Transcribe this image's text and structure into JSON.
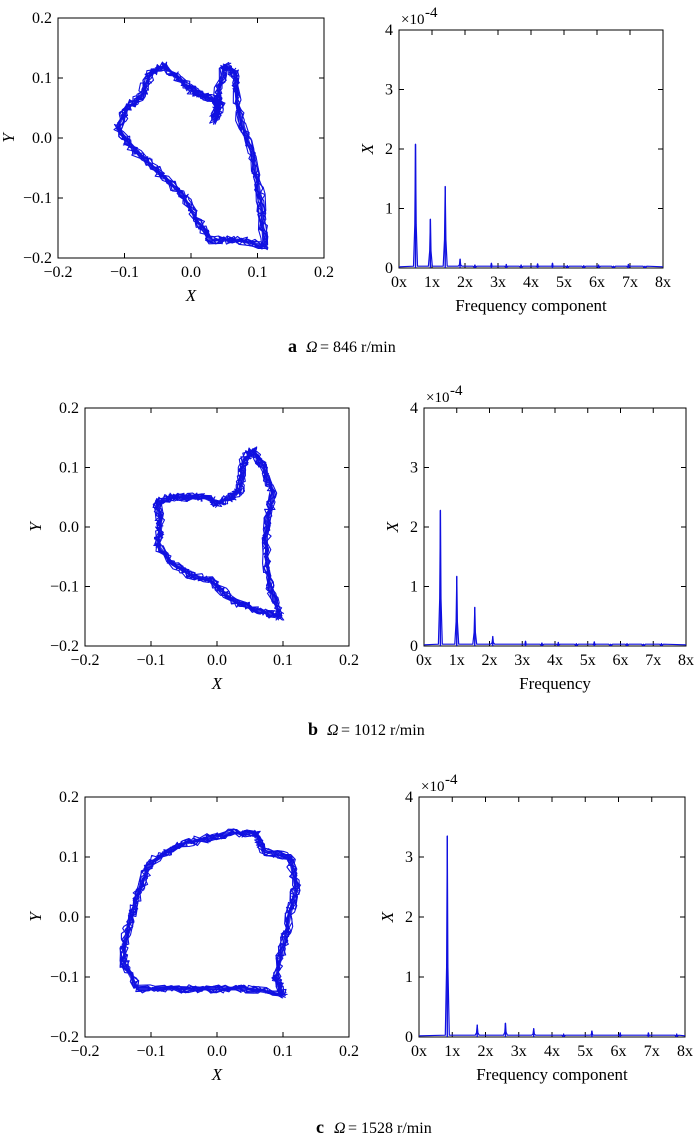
{
  "colors": {
    "trace": "#1010e0",
    "axis": "#000000"
  },
  "captions": [
    {
      "letter": "a",
      "omega": "Ω",
      "rest": "= 846 r/min"
    },
    {
      "letter": "b",
      "omega": "Ω",
      "rest": "= 1012 r/min"
    },
    {
      "letter": "c",
      "omega": "Ω",
      "rest": "= 1528 r/min"
    }
  ],
  "chart_data": [
    {
      "type": "line",
      "role": "orbit",
      "panel": "a",
      "xlabel": "X",
      "ylabel": "Y",
      "xlim": [
        -0.2,
        0.2
      ],
      "ylim": [
        -0.2,
        0.2
      ],
      "xticks": [
        "−0.2",
        "−0.1",
        "0.0",
        "0.1",
        "0.2"
      ],
      "yticks": [
        "−0.2",
        "−0.1",
        "0.0",
        "0.1",
        "0.2"
      ],
      "series": [
        {
          "values": [
            [
              0.11,
              -0.18
            ],
            [
              0.105,
              -0.1
            ],
            [
              0.09,
              -0.02
            ],
            [
              0.07,
              0.05
            ],
            [
              0.065,
              0.11
            ],
            [
              0.05,
              0.12
            ],
            [
              0.04,
              0.07
            ],
            [
              0.035,
              0.03
            ],
            [
              0.045,
              0.06
            ],
            [
              0.02,
              0.07
            ],
            [
              0.0,
              0.08
            ],
            [
              -0.02,
              0.1
            ],
            [
              -0.04,
              0.12
            ],
            [
              -0.06,
              0.11
            ],
            [
              -0.075,
              0.07
            ],
            [
              -0.095,
              0.05
            ],
            [
              -0.11,
              0.02
            ],
            [
              -0.095,
              -0.01
            ],
            [
              -0.065,
              -0.04
            ],
            [
              -0.035,
              -0.07
            ],
            [
              -0.01,
              -0.1
            ],
            [
              0.01,
              -0.14
            ],
            [
              0.03,
              -0.17
            ],
            [
              0.07,
              -0.17
            ],
            [
              0.11,
              -0.18
            ]
          ]
        }
      ]
    },
    {
      "type": "line",
      "role": "spectrum",
      "panel": "a",
      "xlabel": "Frequency component",
      "ylabel": "X",
      "xlim": [
        0,
        8
      ],
      "ylim": [
        0,
        4
      ],
      "scale": "×10^-4",
      "xticks": [
        "0x",
        "1x",
        "2x",
        "3x",
        "4x",
        "5x",
        "6x",
        "7x",
        "8x"
      ],
      "yticks": [
        "0",
        "1",
        "2",
        "3",
        "4"
      ],
      "peaks": [
        [
          0.5,
          2.08
        ],
        [
          0.95,
          0.82
        ],
        [
          1.4,
          1.37
        ],
        [
          1.85,
          0.15
        ],
        [
          2.3,
          0.05
        ],
        [
          2.8,
          0.08
        ],
        [
          3.25,
          0.06
        ],
        [
          3.7,
          0.05
        ],
        [
          4.2,
          0.07
        ],
        [
          4.65,
          0.08
        ],
        [
          5.1,
          0.04
        ],
        [
          5.6,
          0.04
        ],
        [
          6.05,
          0.05
        ],
        [
          6.5,
          0.03
        ],
        [
          6.95,
          0.06
        ],
        [
          7.45,
          0.03
        ]
      ]
    },
    {
      "type": "line",
      "role": "orbit",
      "panel": "b",
      "xlabel": "X",
      "ylabel": "Y",
      "xlim": [
        -0.2,
        0.2
      ],
      "ylim": [
        -0.2,
        0.2
      ],
      "xticks": [
        "−0.2",
        "−0.1",
        "0.0",
        "0.1",
        "0.2"
      ],
      "yticks": [
        "−0.2",
        "−0.1",
        "0.0",
        "0.1",
        "0.2"
      ],
      "series": [
        {
          "values": [
            [
              0.095,
              -0.15
            ],
            [
              0.08,
              -0.1
            ],
            [
              0.075,
              -0.05
            ],
            [
              0.075,
              0.0
            ],
            [
              0.085,
              0.06
            ],
            [
              0.07,
              0.1
            ],
            [
              0.055,
              0.13
            ],
            [
              0.04,
              0.11
            ],
            [
              0.035,
              0.06
            ],
            [
              0.02,
              0.05
            ],
            [
              0.0,
              0.04
            ],
            [
              -0.02,
              0.05
            ],
            [
              -0.045,
              0.05
            ],
            [
              -0.07,
              0.05
            ],
            [
              -0.09,
              0.04
            ],
            [
              -0.085,
              0.0
            ],
            [
              -0.09,
              -0.03
            ],
            [
              -0.07,
              -0.06
            ],
            [
              -0.04,
              -0.08
            ],
            [
              -0.01,
              -0.09
            ],
            [
              0.02,
              -0.12
            ],
            [
              0.06,
              -0.14
            ],
            [
              0.095,
              -0.15
            ]
          ]
        }
      ]
    },
    {
      "type": "line",
      "role": "spectrum",
      "panel": "b",
      "xlabel": "Frequency",
      "ylabel": "X",
      "xlim": [
        0,
        8
      ],
      "ylim": [
        0,
        4
      ],
      "scale": "×10^-4",
      "xticks": [
        "0x",
        "1x",
        "2x",
        "3x",
        "4x",
        "5x",
        "6x",
        "7x",
        "8x"
      ],
      "yticks": [
        "0",
        "1",
        "2",
        "3",
        "4"
      ],
      "peaks": [
        [
          0.5,
          2.28
        ],
        [
          1.0,
          1.17
        ],
        [
          1.55,
          0.65
        ],
        [
          2.1,
          0.16
        ],
        [
          3.1,
          0.08
        ],
        [
          3.6,
          0.05
        ],
        [
          4.1,
          0.06
        ],
        [
          4.65,
          0.04
        ],
        [
          5.2,
          0.07
        ],
        [
          5.7,
          0.03
        ],
        [
          6.2,
          0.04
        ],
        [
          6.7,
          0.03
        ],
        [
          7.25,
          0.04
        ]
      ]
    },
    {
      "type": "line",
      "role": "orbit",
      "panel": "c",
      "xlabel": "X",
      "ylabel": "Y",
      "xlim": [
        -0.2,
        0.2
      ],
      "ylim": [
        -0.2,
        0.2
      ],
      "xticks": [
        "−0.2",
        "−0.1",
        "0.0",
        "0.1",
        "0.2"
      ],
      "yticks": [
        "−0.2",
        "−0.1",
        "0.0",
        "0.1",
        "0.2"
      ],
      "series": [
        {
          "values": [
            [
              0.1,
              -0.13
            ],
            [
              0.09,
              -0.1
            ],
            [
              0.1,
              -0.05
            ],
            [
              0.11,
              0.0
            ],
            [
              0.12,
              0.05
            ],
            [
              0.11,
              0.1
            ],
            [
              0.07,
              0.11
            ],
            [
              0.06,
              0.14
            ],
            [
              0.02,
              0.14
            ],
            [
              -0.02,
              0.13
            ],
            [
              -0.06,
              0.12
            ],
            [
              -0.1,
              0.09
            ],
            [
              -0.12,
              0.04
            ],
            [
              -0.13,
              0.0
            ],
            [
              -0.14,
              -0.04
            ],
            [
              -0.14,
              -0.08
            ],
            [
              -0.12,
              -0.12
            ],
            [
              -0.06,
              -0.12
            ],
            [
              0.0,
              -0.12
            ],
            [
              0.05,
              -0.12
            ],
            [
              0.1,
              -0.13
            ]
          ]
        }
      ]
    },
    {
      "type": "line",
      "role": "spectrum",
      "panel": "c",
      "xlabel": "Frequency component",
      "ylabel": "X",
      "xlim": [
        0,
        8
      ],
      "ylim": [
        0,
        4
      ],
      "scale": "×10^-4",
      "xticks": [
        "0x",
        "1x",
        "2x",
        "3x",
        "4x",
        "5x",
        "6x",
        "7x",
        "8x"
      ],
      "yticks": [
        "0",
        "1",
        "2",
        "3",
        "4"
      ],
      "peaks": [
        [
          0.85,
          3.35
        ],
        [
          1.75,
          0.2
        ],
        [
          2.6,
          0.23
        ],
        [
          3.45,
          0.14
        ],
        [
          4.35,
          0.05
        ],
        [
          5.2,
          0.1
        ],
        [
          6.05,
          0.07
        ],
        [
          6.9,
          0.07
        ],
        [
          7.75,
          0.05
        ]
      ]
    }
  ]
}
